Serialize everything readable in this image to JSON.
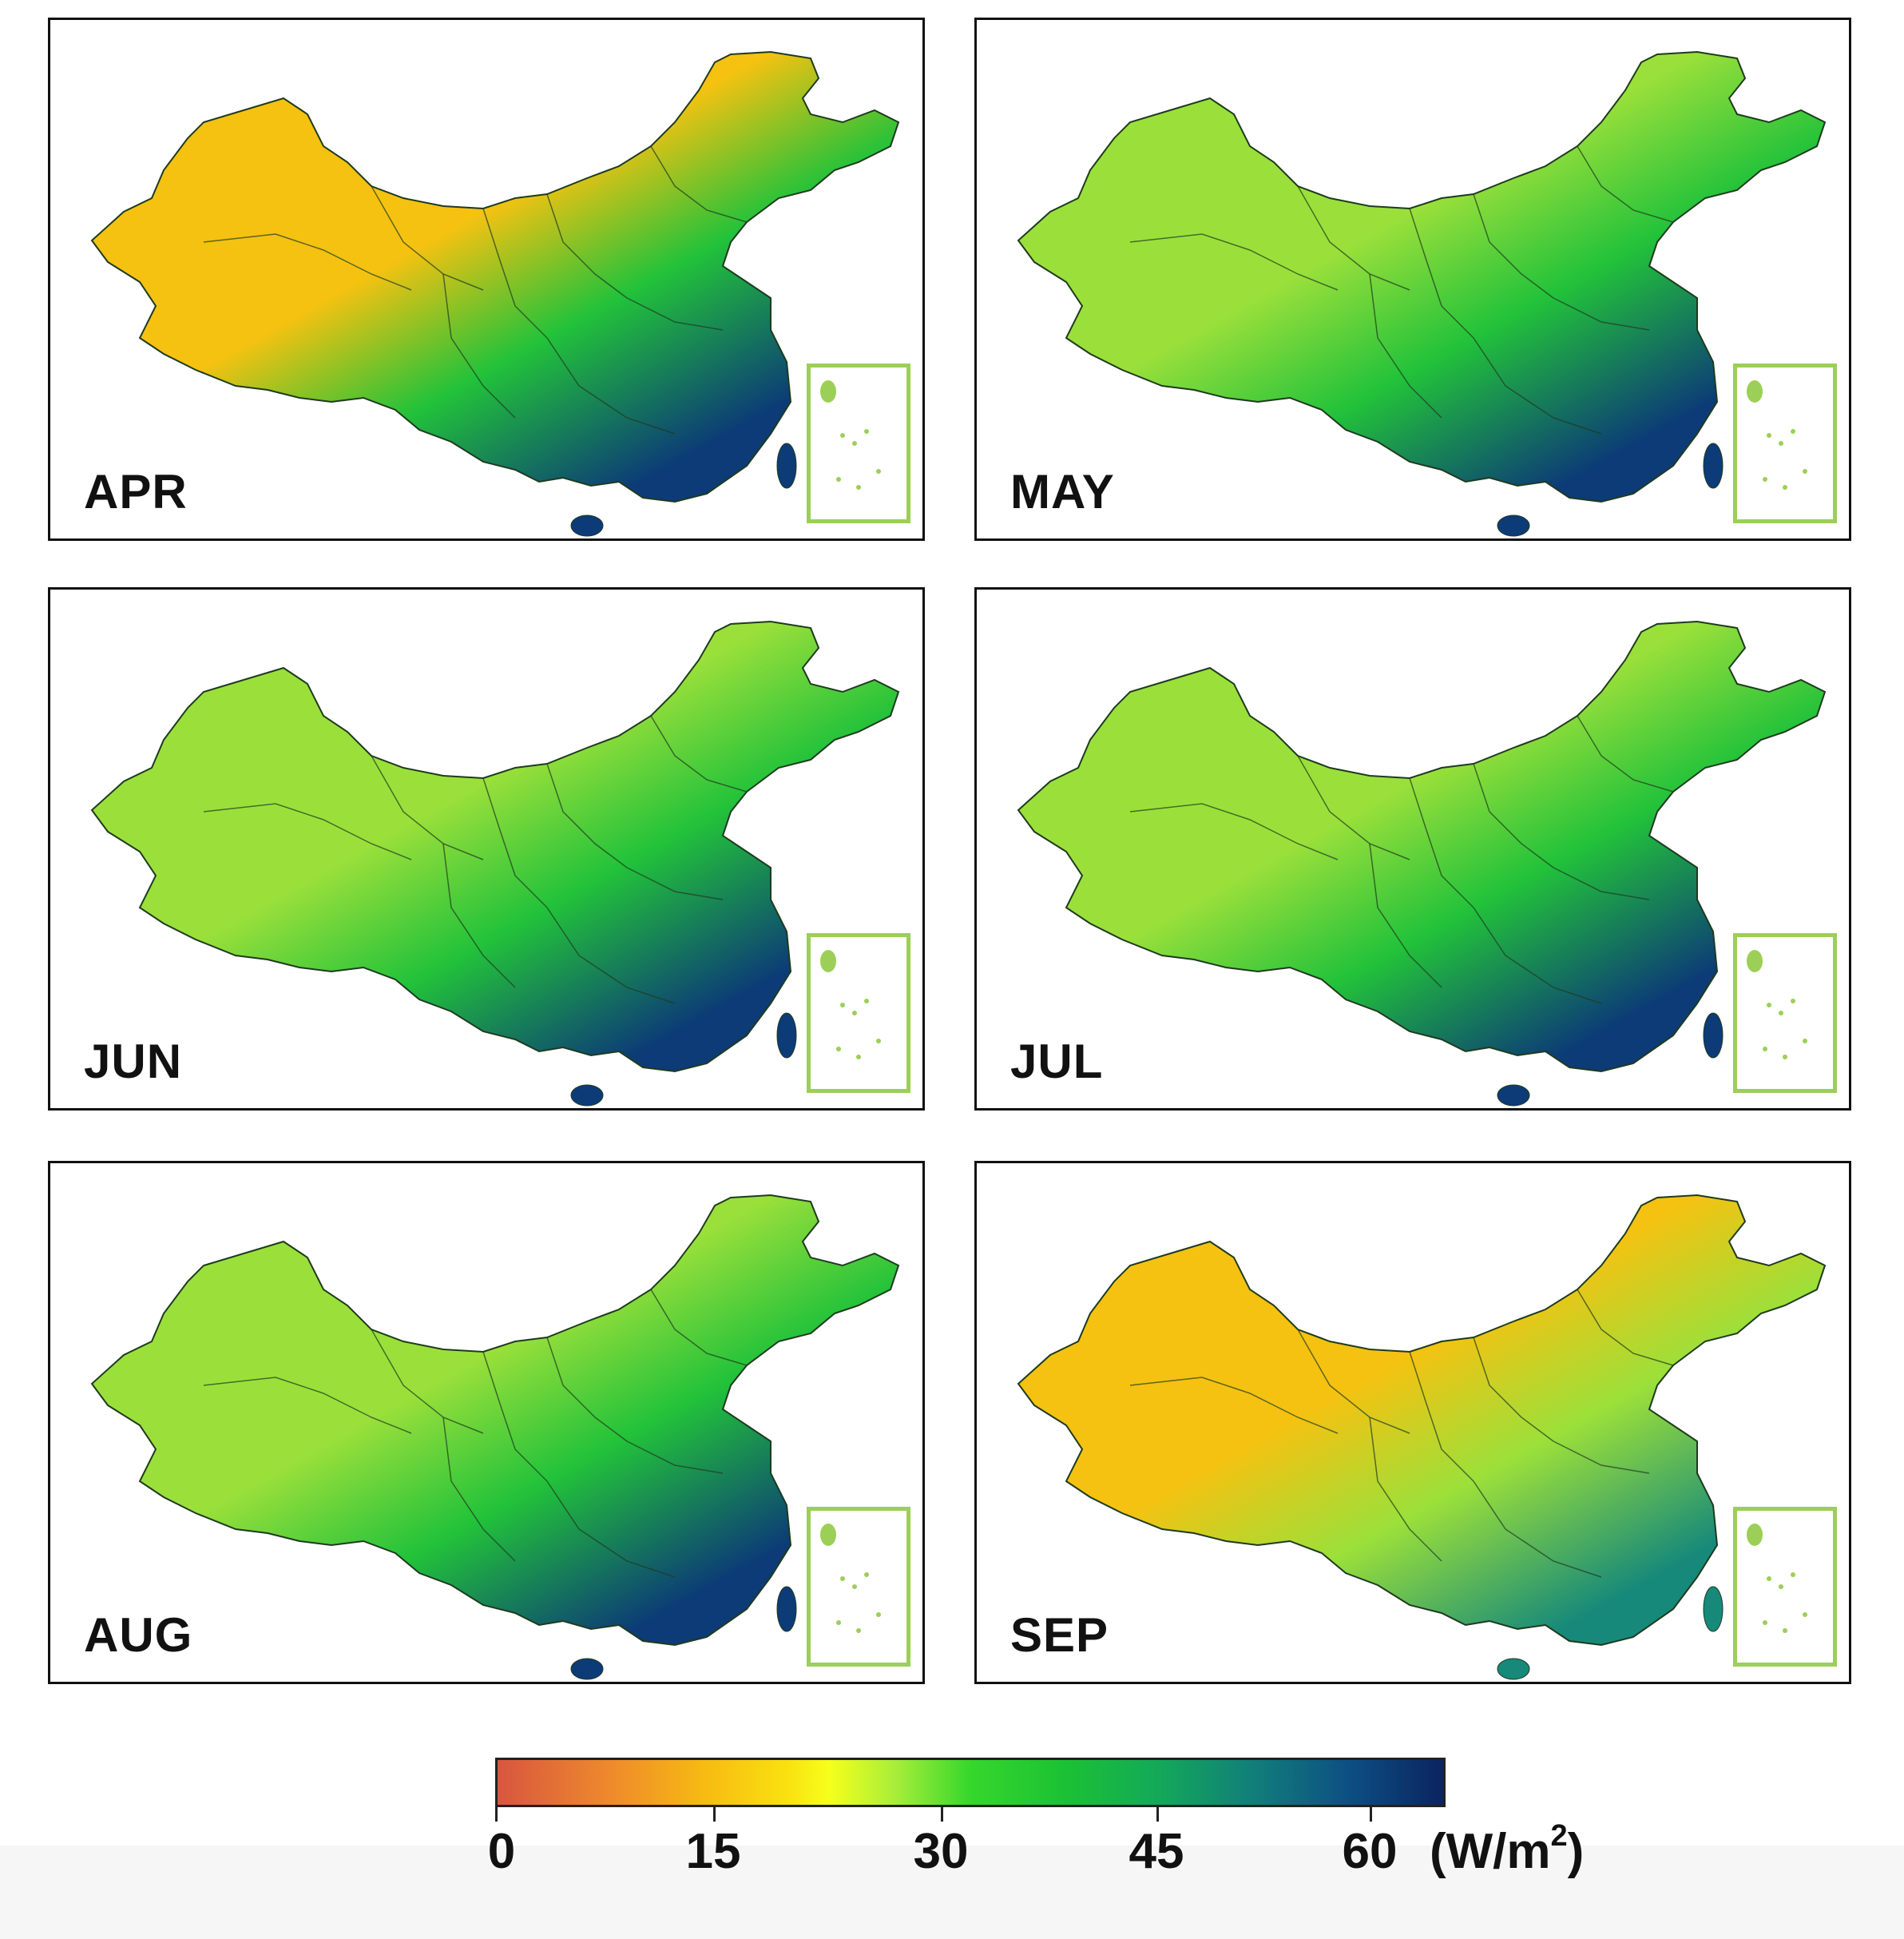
{
  "panels": [
    {
      "label": "APR"
    },
    {
      "label": "MAY"
    },
    {
      "label": "JUN"
    },
    {
      "label": "JUL"
    },
    {
      "label": "AUG"
    },
    {
      "label": "SEP"
    }
  ],
  "colorbar": {
    "ticks": [
      "0",
      "15",
      "30",
      "45",
      "60"
    ],
    "unit_prefix": "(W/m",
    "unit_sup": "2",
    "unit_suffix": ")",
    "colors": [
      "#d8563f",
      "#ee8a2c",
      "#f7bb12",
      "#f7ff1b",
      "#36d72c",
      "#1bc134",
      "#117e7a",
      "#0b2460"
    ]
  },
  "map_colors": {
    "low": "#f5c211",
    "mid_low": "#9be03a",
    "mid": "#22c23a",
    "mid_high": "#16897a",
    "high": "#0c3b77",
    "boundary": "#1e3a1e",
    "inset_border": "#9ccf57"
  }
}
